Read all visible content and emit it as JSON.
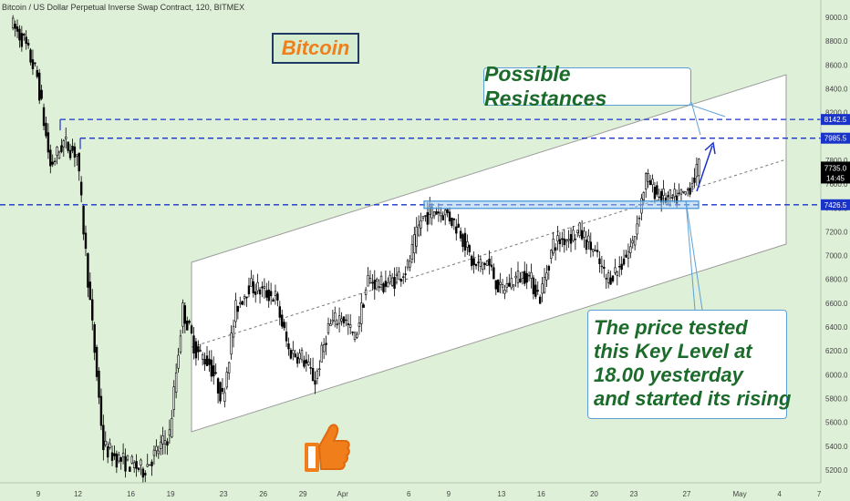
{
  "header": {
    "text": "Bitcoin / US Dollar Perpetual Inverse Swap Contract, 120, BITMEX"
  },
  "title": "Bitcoin",
  "annotations": {
    "resistances": "Possible Resistances",
    "price_note": [
      "The price tested",
      "this Key Level at",
      "18.00 yesterday",
      "and started its rising"
    ]
  },
  "icons": {
    "thumb": "thumbs-up-icon",
    "arrow": "arrow-up-right-icon"
  },
  "colors": {
    "background": "#dff0d8",
    "level": "#1a33c8",
    "channel_fill": "#ffffff",
    "title": "#f07e1a",
    "note_text": "#1b6b2a",
    "candle": "#000000"
  },
  "chart_data": {
    "type": "candlestick",
    "yaxis": {
      "range": [
        5120,
        9080
      ],
      "ticks": [
        9000,
        8800,
        8600,
        8400,
        8200,
        8000,
        7800,
        7600,
        7400,
        7200,
        7000,
        6800,
        6600,
        6400,
        6200,
        6000,
        5800,
        5600,
        5400,
        5200
      ]
    },
    "xaxis": {
      "ticks": [
        {
          "label": "9",
          "date": "2018-03-09"
        },
        {
          "label": "12",
          "date": "2018-03-12"
        },
        {
          "label": "16",
          "date": "2018-03-16"
        },
        {
          "label": "19",
          "date": "2018-03-19"
        },
        {
          "label": "23",
          "date": "2018-03-23"
        },
        {
          "label": "26",
          "date": "2018-03-26"
        },
        {
          "label": "29",
          "date": "2018-03-29"
        },
        {
          "label": "Apr",
          "date": "2018-04-01"
        },
        {
          "label": "6",
          "date": "2018-04-06"
        },
        {
          "label": "9",
          "date": "2018-04-09"
        },
        {
          "label": "13",
          "date": "2018-04-13"
        },
        {
          "label": "16",
          "date": "2018-04-16"
        },
        {
          "label": "20",
          "date": "2018-04-20"
        },
        {
          "label": "23",
          "date": "2018-04-23"
        },
        {
          "label": "27",
          "date": "2018-04-27"
        },
        {
          "label": "May",
          "date": "2018-05-01"
        },
        {
          "label": "4",
          "date": "2018-05-04"
        },
        {
          "label": "7",
          "date": "2018-05-07"
        }
      ]
    },
    "levels": [
      {
        "value": 8142.5,
        "label": "8142.5"
      },
      {
        "value": 7985.5,
        "label": "7985.5"
      },
      {
        "value": 7426.5,
        "label": "7426.5"
      }
    ],
    "current_price": {
      "value": 7735.0,
      "label": "7735.0",
      "countdown": "14:45"
    },
    "price_path": [
      {
        "date": "2018-03-07",
        "price": 8950
      },
      {
        "date": "2018-03-08",
        "price": 8800
      },
      {
        "date": "2018-03-09",
        "price": 8500
      },
      {
        "date": "2018-03-10",
        "price": 7750
      },
      {
        "date": "2018-03-11",
        "price": 7950
      },
      {
        "date": "2018-03-12",
        "price": 7850
      },
      {
        "date": "2018-03-13",
        "price": 6600
      },
      {
        "date": "2018-03-14",
        "price": 5400
      },
      {
        "date": "2018-03-15",
        "price": 5300
      },
      {
        "date": "2018-03-16",
        "price": 5250
      },
      {
        "date": "2018-03-17",
        "price": 5200
      },
      {
        "date": "2018-03-18",
        "price": 5350
      },
      {
        "date": "2018-03-19",
        "price": 5500
      },
      {
        "date": "2018-03-20",
        "price": 6550
      },
      {
        "date": "2018-03-21",
        "price": 6200
      },
      {
        "date": "2018-03-22",
        "price": 6100
      },
      {
        "date": "2018-03-23",
        "price": 5800
      },
      {
        "date": "2018-03-24",
        "price": 6550
      },
      {
        "date": "2018-03-25",
        "price": 6750
      },
      {
        "date": "2018-03-26",
        "price": 6700
      },
      {
        "date": "2018-03-27",
        "price": 6650
      },
      {
        "date": "2018-03-28",
        "price": 6200
      },
      {
        "date": "2018-03-29",
        "price": 6150
      },
      {
        "date": "2018-03-30",
        "price": 5950
      },
      {
        "date": "2018-03-31",
        "price": 6400
      },
      {
        "date": "2018-04-01",
        "price": 6500
      },
      {
        "date": "2018-04-02",
        "price": 6300
      },
      {
        "date": "2018-04-03",
        "price": 6800
      },
      {
        "date": "2018-04-04",
        "price": 6750
      },
      {
        "date": "2018-04-05",
        "price": 6800
      },
      {
        "date": "2018-04-06",
        "price": 6900
      },
      {
        "date": "2018-04-07",
        "price": 7300
      },
      {
        "date": "2018-04-08",
        "price": 7380
      },
      {
        "date": "2018-04-09",
        "price": 7350
      },
      {
        "date": "2018-04-10",
        "price": 7200
      },
      {
        "date": "2018-04-11",
        "price": 6900
      },
      {
        "date": "2018-04-12",
        "price": 6950
      },
      {
        "date": "2018-04-13",
        "price": 6700
      },
      {
        "date": "2018-04-14",
        "price": 6800
      },
      {
        "date": "2018-04-15",
        "price": 6850
      },
      {
        "date": "2018-04-16",
        "price": 6650
      },
      {
        "date": "2018-04-17",
        "price": 7100
      },
      {
        "date": "2018-04-18",
        "price": 7150
      },
      {
        "date": "2018-04-19",
        "price": 7200
      },
      {
        "date": "2018-04-20",
        "price": 7050
      },
      {
        "date": "2018-04-21",
        "price": 6800
      },
      {
        "date": "2018-04-22",
        "price": 6900
      },
      {
        "date": "2018-04-23",
        "price": 7100
      },
      {
        "date": "2018-04-24",
        "price": 7650
      },
      {
        "date": "2018-04-25",
        "price": 7500
      },
      {
        "date": "2018-04-26",
        "price": 7470
      },
      {
        "date": "2018-04-27",
        "price": 7520
      },
      {
        "date": "2018-04-28",
        "price": 7735
      }
    ]
  }
}
